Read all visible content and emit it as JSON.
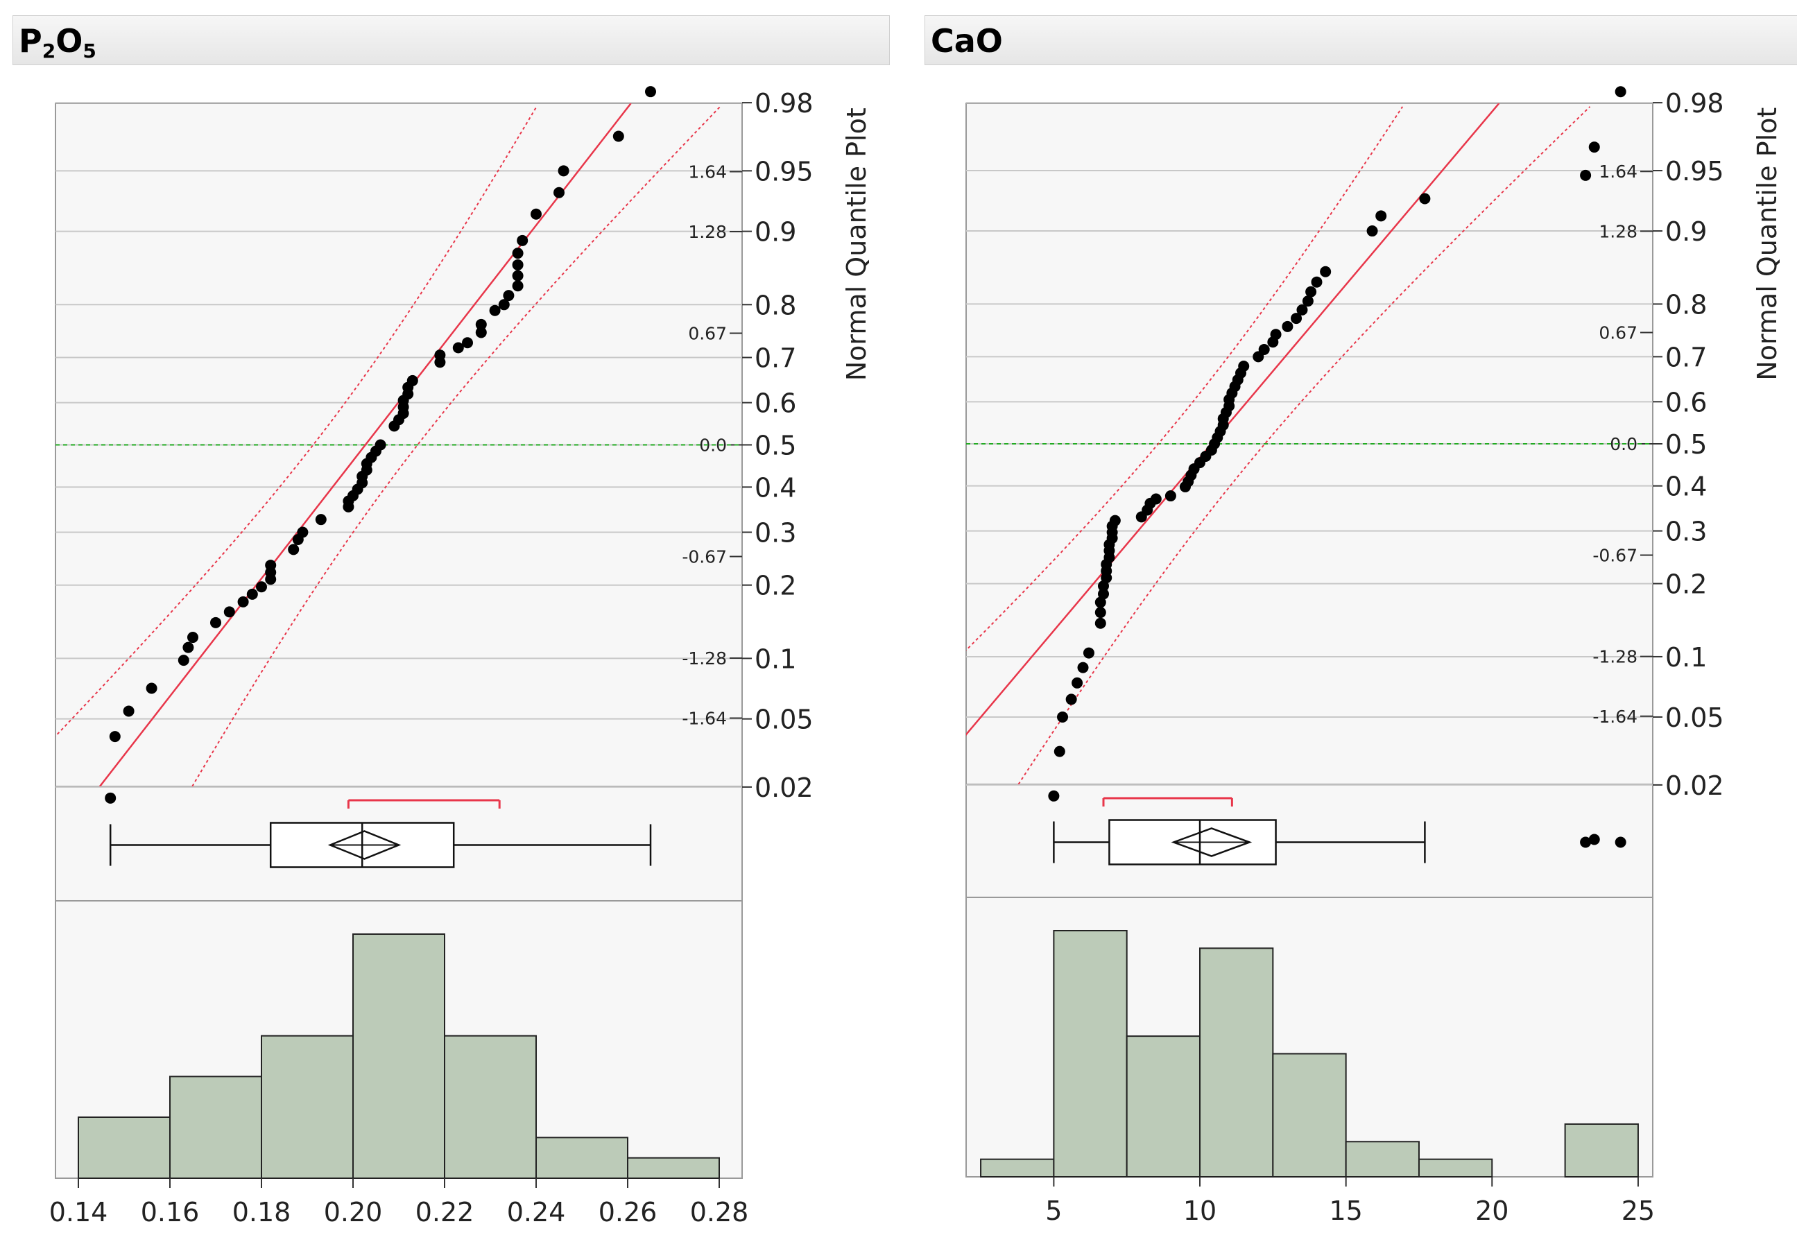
{
  "panels": [
    {
      "id": "p2o5",
      "title_parts": [
        "P",
        "2",
        "O",
        "5"
      ],
      "quantile_plot_label": "Normal Quantile Plot",
      "prob_ticks": [
        {
          "p": 0.98,
          "label": "0.98"
        },
        {
          "p": 0.95,
          "label": "0.95"
        },
        {
          "p": 0.9,
          "label": "0.9"
        },
        {
          "p": 0.8,
          "label": "0.8"
        },
        {
          "p": 0.7,
          "label": "0.7"
        },
        {
          "p": 0.6,
          "label": "0.6"
        },
        {
          "p": 0.5,
          "label": "0.5"
        },
        {
          "p": 0.4,
          "label": "0.4"
        },
        {
          "p": 0.3,
          "label": "0.3"
        },
        {
          "p": 0.2,
          "label": "0.2"
        },
        {
          "p": 0.1,
          "label": "0.1"
        },
        {
          "p": 0.05,
          "label": "0.05"
        },
        {
          "p": 0.02,
          "label": "0.02"
        }
      ],
      "z_ticks": [
        {
          "z": 1.64,
          "label": "1.64"
        },
        {
          "z": 1.28,
          "label": "1.28"
        },
        {
          "z": 0.67,
          "label": "0.67"
        },
        {
          "z": 0.0,
          "label": "0.0"
        },
        {
          "z": -0.67,
          "label": "-0.67"
        },
        {
          "z": -1.28,
          "label": "-1.28"
        },
        {
          "z": -1.64,
          "label": "-1.64"
        }
      ]
    },
    {
      "id": "cao",
      "title": "CaO",
      "quantile_plot_label": "Normal Quantile Plot",
      "prob_ticks": [
        {
          "p": 0.98,
          "label": "0.98"
        },
        {
          "p": 0.95,
          "label": "0.95"
        },
        {
          "p": 0.9,
          "label": "0.9"
        },
        {
          "p": 0.8,
          "label": "0.8"
        },
        {
          "p": 0.7,
          "label": "0.7"
        },
        {
          "p": 0.6,
          "label": "0.6"
        },
        {
          "p": 0.5,
          "label": "0.5"
        },
        {
          "p": 0.4,
          "label": "0.4"
        },
        {
          "p": 0.3,
          "label": "0.3"
        },
        {
          "p": 0.2,
          "label": "0.2"
        },
        {
          "p": 0.1,
          "label": "0.1"
        },
        {
          "p": 0.05,
          "label": "0.05"
        },
        {
          "p": 0.02,
          "label": "0.02"
        }
      ],
      "z_ticks": [
        {
          "z": 1.64,
          "label": "1.64"
        },
        {
          "z": 1.28,
          "label": "1.28"
        },
        {
          "z": 0.67,
          "label": "0.67"
        },
        {
          "z": 0.0,
          "label": "0.0"
        },
        {
          "z": -0.67,
          "label": "-0.67"
        },
        {
          "z": -1.28,
          "label": "-1.28"
        },
        {
          "z": -1.64,
          "label": "-1.64"
        }
      ]
    }
  ],
  "chart_data": [
    {
      "type": "histogram",
      "variable": "P2O5",
      "title": "P2O5",
      "xlim": [
        0.135,
        0.285
      ],
      "x_ticks": [
        "0.14",
        "0.16",
        "0.18",
        "0.20",
        "0.22",
        "0.24",
        "0.26",
        "0.28"
      ],
      "x_tick_values": [
        0.14,
        0.16,
        0.18,
        0.2,
        0.22,
        0.24,
        0.26,
        0.28
      ],
      "bins": [
        {
          "from": 0.14,
          "to": 0.16,
          "count": 3
        },
        {
          "from": 0.16,
          "to": 0.18,
          "count": 5
        },
        {
          "from": 0.18,
          "to": 0.2,
          "count": 7
        },
        {
          "from": 0.2,
          "to": 0.22,
          "count": 12
        },
        {
          "from": 0.22,
          "to": 0.24,
          "count": 7
        },
        {
          "from": 0.24,
          "to": 0.26,
          "count": 2
        },
        {
          "from": 0.26,
          "to": 0.28,
          "count": 1
        }
      ],
      "box_plot": {
        "min": 0.147,
        "q1": 0.182,
        "median": 0.202,
        "q3": 0.222,
        "max": 0.265,
        "mean": 0.2025,
        "mean_ci": [
          0.195,
          0.21
        ],
        "shortest_half": [
          0.199,
          0.232
        ],
        "outliers": []
      },
      "normal_fit": {
        "mean": 0.2027,
        "sd": 0.0283
      },
      "quantile_points": [
        {
          "x": 0.147,
          "p": 0.017
        },
        {
          "x": 0.148,
          "p": 0.04
        },
        {
          "x": 0.151,
          "p": 0.055
        },
        {
          "x": 0.156,
          "p": 0.072
        },
        {
          "x": 0.163,
          "p": 0.098
        },
        {
          "x": 0.164,
          "p": 0.112
        },
        {
          "x": 0.165,
          "p": 0.124
        },
        {
          "x": 0.17,
          "p": 0.143
        },
        {
          "x": 0.173,
          "p": 0.158
        },
        {
          "x": 0.176,
          "p": 0.173
        },
        {
          "x": 0.178,
          "p": 0.185
        },
        {
          "x": 0.18,
          "p": 0.197
        },
        {
          "x": 0.182,
          "p": 0.21
        },
        {
          "x": 0.182,
          "p": 0.222
        },
        {
          "x": 0.182,
          "p": 0.235
        },
        {
          "x": 0.187,
          "p": 0.265
        },
        {
          "x": 0.188,
          "p": 0.285
        },
        {
          "x": 0.189,
          "p": 0.3
        },
        {
          "x": 0.193,
          "p": 0.327
        },
        {
          "x": 0.199,
          "p": 0.355
        },
        {
          "x": 0.199,
          "p": 0.368
        },
        {
          "x": 0.2,
          "p": 0.38
        },
        {
          "x": 0.201,
          "p": 0.395
        },
        {
          "x": 0.202,
          "p": 0.41
        },
        {
          "x": 0.202,
          "p": 0.425
        },
        {
          "x": 0.203,
          "p": 0.44
        },
        {
          "x": 0.203,
          "p": 0.455
        },
        {
          "x": 0.204,
          "p": 0.47
        },
        {
          "x": 0.205,
          "p": 0.485
        },
        {
          "x": 0.206,
          "p": 0.5
        },
        {
          "x": 0.209,
          "p": 0.545
        },
        {
          "x": 0.21,
          "p": 0.56
        },
        {
          "x": 0.211,
          "p": 0.575
        },
        {
          "x": 0.211,
          "p": 0.59
        },
        {
          "x": 0.211,
          "p": 0.605
        },
        {
          "x": 0.212,
          "p": 0.62
        },
        {
          "x": 0.212,
          "p": 0.635
        },
        {
          "x": 0.213,
          "p": 0.65
        },
        {
          "x": 0.219,
          "p": 0.69
        },
        {
          "x": 0.219,
          "p": 0.705
        },
        {
          "x": 0.223,
          "p": 0.72
        },
        {
          "x": 0.225,
          "p": 0.73
        },
        {
          "x": 0.228,
          "p": 0.75
        },
        {
          "x": 0.228,
          "p": 0.765
        },
        {
          "x": 0.231,
          "p": 0.79
        },
        {
          "x": 0.233,
          "p": 0.8
        },
        {
          "x": 0.234,
          "p": 0.815
        },
        {
          "x": 0.236,
          "p": 0.83
        },
        {
          "x": 0.236,
          "p": 0.845
        },
        {
          "x": 0.236,
          "p": 0.86
        },
        {
          "x": 0.236,
          "p": 0.875
        },
        {
          "x": 0.237,
          "p": 0.89
        },
        {
          "x": 0.24,
          "p": 0.917
        },
        {
          "x": 0.245,
          "p": 0.935
        },
        {
          "x": 0.246,
          "p": 0.95
        },
        {
          "x": 0.258,
          "p": 0.968
        },
        {
          "x": 0.265,
          "p": 0.983
        }
      ]
    },
    {
      "type": "histogram",
      "variable": "CaO",
      "title": "CaO",
      "xlim": [
        2,
        25.5
      ],
      "x_ticks": [
        "5",
        "10",
        "15",
        "20",
        "25"
      ],
      "x_tick_values": [
        5,
        10,
        15,
        20,
        25
      ],
      "bins": [
        {
          "from": 2.5,
          "to": 5.0,
          "count": 1
        },
        {
          "from": 5.0,
          "to": 7.5,
          "count": 14
        },
        {
          "from": 7.5,
          "to": 10.0,
          "count": 8
        },
        {
          "from": 10.0,
          "to": 12.5,
          "count": 13
        },
        {
          "from": 12.5,
          "to": 15.0,
          "count": 7
        },
        {
          "from": 15.0,
          "to": 17.5,
          "count": 2
        },
        {
          "from": 17.5,
          "to": 20.0,
          "count": 1
        },
        {
          "from": 20.0,
          "to": 22.5,
          "count": 0
        },
        {
          "from": 22.5,
          "to": 25.0,
          "count": 3
        }
      ],
      "box_plot": {
        "min": 5.0,
        "q1": 6.9,
        "median": 10.0,
        "q3": 12.6,
        "max": 17.7,
        "mean": 10.4,
        "mean_ci": [
          9.1,
          11.7
        ],
        "shortest_half": [
          6.7,
          11.1
        ],
        "outliers": [
          23.2,
          23.5,
          24.4
        ]
      },
      "normal_fit": {
        "mean": 10.4,
        "sd": 4.8
      },
      "quantile_points": [
        {
          "x": 5.0,
          "p": 0.017
        },
        {
          "x": 5.2,
          "p": 0.032
        },
        {
          "x": 5.3,
          "p": 0.05
        },
        {
          "x": 5.6,
          "p": 0.062
        },
        {
          "x": 5.8,
          "p": 0.075
        },
        {
          "x": 6.0,
          "p": 0.089
        },
        {
          "x": 6.2,
          "p": 0.104
        },
        {
          "x": 6.6,
          "p": 0.14
        },
        {
          "x": 6.6,
          "p": 0.155
        },
        {
          "x": 6.6,
          "p": 0.17
        },
        {
          "x": 6.7,
          "p": 0.183
        },
        {
          "x": 6.7,
          "p": 0.196
        },
        {
          "x": 6.8,
          "p": 0.21
        },
        {
          "x": 6.8,
          "p": 0.222
        },
        {
          "x": 6.8,
          "p": 0.234
        },
        {
          "x": 6.9,
          "p": 0.247
        },
        {
          "x": 6.9,
          "p": 0.26
        },
        {
          "x": 6.9,
          "p": 0.272
        },
        {
          "x": 7.0,
          "p": 0.285
        },
        {
          "x": 7.0,
          "p": 0.297
        },
        {
          "x": 7.0,
          "p": 0.31
        },
        {
          "x": 7.1,
          "p": 0.322
        },
        {
          "x": 8.0,
          "p": 0.33
        },
        {
          "x": 8.2,
          "p": 0.345
        },
        {
          "x": 8.3,
          "p": 0.36
        },
        {
          "x": 8.5,
          "p": 0.37
        },
        {
          "x": 9.0,
          "p": 0.377
        },
        {
          "x": 9.5,
          "p": 0.398
        },
        {
          "x": 9.6,
          "p": 0.41
        },
        {
          "x": 9.7,
          "p": 0.425
        },
        {
          "x": 9.8,
          "p": 0.44
        },
        {
          "x": 10.0,
          "p": 0.455
        },
        {
          "x": 10.2,
          "p": 0.47
        },
        {
          "x": 10.4,
          "p": 0.485
        },
        {
          "x": 10.5,
          "p": 0.5
        },
        {
          "x": 10.6,
          "p": 0.515
        },
        {
          "x": 10.7,
          "p": 0.53
        },
        {
          "x": 10.8,
          "p": 0.545
        },
        {
          "x": 10.8,
          "p": 0.56
        },
        {
          "x": 10.9,
          "p": 0.575
        },
        {
          "x": 11.0,
          "p": 0.59
        },
        {
          "x": 11.0,
          "p": 0.605
        },
        {
          "x": 11.1,
          "p": 0.62
        },
        {
          "x": 11.2,
          "p": 0.635
        },
        {
          "x": 11.3,
          "p": 0.65
        },
        {
          "x": 11.4,
          "p": 0.665
        },
        {
          "x": 11.5,
          "p": 0.68
        },
        {
          "x": 12.0,
          "p": 0.7
        },
        {
          "x": 12.2,
          "p": 0.715
        },
        {
          "x": 12.5,
          "p": 0.73
        },
        {
          "x": 12.6,
          "p": 0.745
        },
        {
          "x": 13.0,
          "p": 0.76
        },
        {
          "x": 13.3,
          "p": 0.775
        },
        {
          "x": 13.5,
          "p": 0.79
        },
        {
          "x": 13.7,
          "p": 0.805
        },
        {
          "x": 13.8,
          "p": 0.82
        },
        {
          "x": 14.0,
          "p": 0.835
        },
        {
          "x": 14.3,
          "p": 0.85
        },
        {
          "x": 15.9,
          "p": 0.9
        },
        {
          "x": 16.2,
          "p": 0.915
        },
        {
          "x": 17.7,
          "p": 0.93
        },
        {
          "x": 23.2,
          "p": 0.947
        },
        {
          "x": 23.5,
          "p": 0.963
        },
        {
          "x": 24.4,
          "p": 0.983
        }
      ]
    }
  ]
}
